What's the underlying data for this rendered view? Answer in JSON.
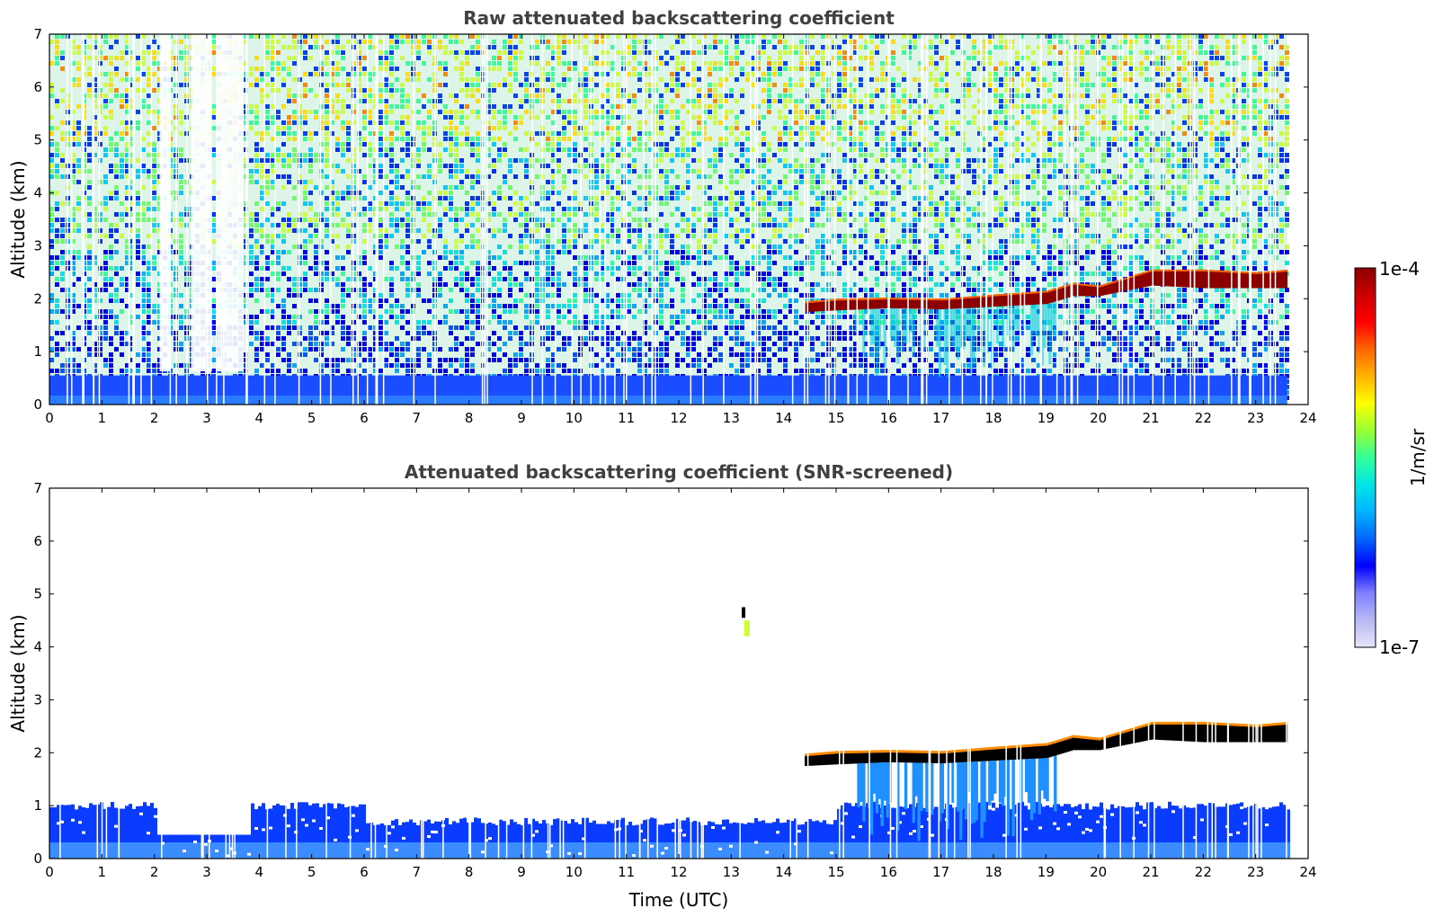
{
  "chart_data": [
    {
      "type": "heatmap",
      "title": "Raw attenuated backscattering coefficient",
      "xlabel": "",
      "ylabel": "Altitude (km)",
      "xlim": [
        0,
        24
      ],
      "ylim": [
        0,
        7
      ],
      "xticks": [
        "0",
        "1",
        "2",
        "3",
        "4",
        "5",
        "6",
        "7",
        "8",
        "9",
        "10",
        "11",
        "12",
        "13",
        "14",
        "15",
        "16",
        "17",
        "18",
        "19",
        "20",
        "21",
        "22",
        "23",
        "24"
      ],
      "yticks": [
        "0",
        "1",
        "2",
        "3",
        "4",
        "5",
        "6",
        "7"
      ],
      "data_end_hour": 23.6,
      "boundary_layer_top_km": 0.55,
      "cloud_layer": [
        {
          "t": 14.4,
          "base": 1.75,
          "top": 1.95
        },
        {
          "t": 15.0,
          "base": 1.78,
          "top": 2.0
        },
        {
          "t": 16.0,
          "base": 1.82,
          "top": 2.02
        },
        {
          "t": 17.0,
          "base": 1.8,
          "top": 2.0
        },
        {
          "t": 18.0,
          "base": 1.85,
          "top": 2.08
        },
        {
          "t": 19.0,
          "base": 1.9,
          "top": 2.15
        },
        {
          "t": 19.5,
          "base": 2.05,
          "top": 2.3
        },
        {
          "t": 20.0,
          "base": 2.05,
          "top": 2.25
        },
        {
          "t": 21.0,
          "base": 2.25,
          "top": 2.55
        },
        {
          "t": 22.0,
          "base": 2.2,
          "top": 2.55
        },
        {
          "t": 23.0,
          "base": 2.2,
          "top": 2.5
        },
        {
          "t": 23.6,
          "base": 2.2,
          "top": 2.55
        }
      ]
    },
    {
      "type": "heatmap",
      "title": "Attenuated backscattering coefficient (SNR-screened)",
      "xlabel": "Time (UTC)",
      "ylabel": "Altitude (km)",
      "xlim": [
        0,
        24
      ],
      "ylim": [
        0,
        7
      ],
      "xticks": [
        "0",
        "1",
        "2",
        "3",
        "4",
        "5",
        "6",
        "7",
        "8",
        "9",
        "10",
        "11",
        "12",
        "13",
        "14",
        "15",
        "16",
        "17",
        "18",
        "19",
        "20",
        "21",
        "22",
        "23",
        "24"
      ],
      "yticks": [
        "0",
        "1",
        "2",
        "3",
        "4",
        "5",
        "6",
        "7"
      ],
      "data_end_hour": 23.6,
      "boundary_layer_top_km": 1.0
    }
  ],
  "colorbar": {
    "label": "1/m/sr",
    "max_label": "1e-4",
    "min_label": "1e-7",
    "colors": [
      "#e6e6fa",
      "#b8b8f5",
      "#8080ff",
      "#0000ff",
      "#0066ff",
      "#00b3ff",
      "#00e5e5",
      "#33ff99",
      "#99ff33",
      "#ffff00",
      "#ffb300",
      "#ff6600",
      "#ff0000",
      "#cc0000",
      "#8b0000"
    ]
  }
}
